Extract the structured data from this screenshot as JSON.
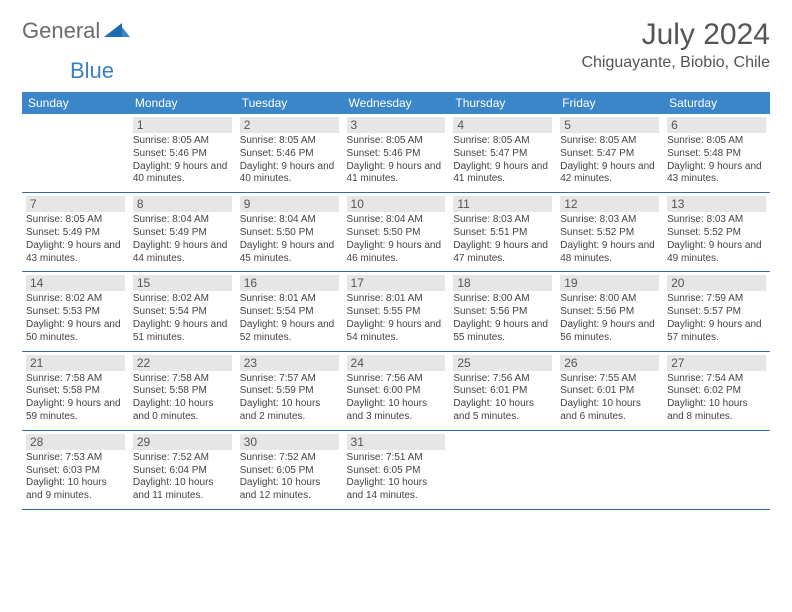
{
  "brand": {
    "general": "General",
    "blue": "Blue"
  },
  "title": "July 2024",
  "location": "Chiguayante, Biobio, Chile",
  "colors": {
    "header_bg": "#3a86c8",
    "header_text": "#ffffff",
    "row_border": "#2f6ea8",
    "daynum_bg": "#e6e6e6",
    "logo_blue": "#3a7fc4",
    "logo_gray": "#6b6b6b"
  },
  "weekdays": [
    "Sunday",
    "Monday",
    "Tuesday",
    "Wednesday",
    "Thursday",
    "Friday",
    "Saturday"
  ],
  "start_offset": 1,
  "days": [
    {
      "n": 1,
      "sr": "8:05 AM",
      "ss": "5:46 PM",
      "dl": "9 hours and 40 minutes."
    },
    {
      "n": 2,
      "sr": "8:05 AM",
      "ss": "5:46 PM",
      "dl": "9 hours and 40 minutes."
    },
    {
      "n": 3,
      "sr": "8:05 AM",
      "ss": "5:46 PM",
      "dl": "9 hours and 41 minutes."
    },
    {
      "n": 4,
      "sr": "8:05 AM",
      "ss": "5:47 PM",
      "dl": "9 hours and 41 minutes."
    },
    {
      "n": 5,
      "sr": "8:05 AM",
      "ss": "5:47 PM",
      "dl": "9 hours and 42 minutes."
    },
    {
      "n": 6,
      "sr": "8:05 AM",
      "ss": "5:48 PM",
      "dl": "9 hours and 43 minutes."
    },
    {
      "n": 7,
      "sr": "8:05 AM",
      "ss": "5:49 PM",
      "dl": "9 hours and 43 minutes."
    },
    {
      "n": 8,
      "sr": "8:04 AM",
      "ss": "5:49 PM",
      "dl": "9 hours and 44 minutes."
    },
    {
      "n": 9,
      "sr": "8:04 AM",
      "ss": "5:50 PM",
      "dl": "9 hours and 45 minutes."
    },
    {
      "n": 10,
      "sr": "8:04 AM",
      "ss": "5:50 PM",
      "dl": "9 hours and 46 minutes."
    },
    {
      "n": 11,
      "sr": "8:03 AM",
      "ss": "5:51 PM",
      "dl": "9 hours and 47 minutes."
    },
    {
      "n": 12,
      "sr": "8:03 AM",
      "ss": "5:52 PM",
      "dl": "9 hours and 48 minutes."
    },
    {
      "n": 13,
      "sr": "8:03 AM",
      "ss": "5:52 PM",
      "dl": "9 hours and 49 minutes."
    },
    {
      "n": 14,
      "sr": "8:02 AM",
      "ss": "5:53 PM",
      "dl": "9 hours and 50 minutes."
    },
    {
      "n": 15,
      "sr": "8:02 AM",
      "ss": "5:54 PM",
      "dl": "9 hours and 51 minutes."
    },
    {
      "n": 16,
      "sr": "8:01 AM",
      "ss": "5:54 PM",
      "dl": "9 hours and 52 minutes."
    },
    {
      "n": 17,
      "sr": "8:01 AM",
      "ss": "5:55 PM",
      "dl": "9 hours and 54 minutes."
    },
    {
      "n": 18,
      "sr": "8:00 AM",
      "ss": "5:56 PM",
      "dl": "9 hours and 55 minutes."
    },
    {
      "n": 19,
      "sr": "8:00 AM",
      "ss": "5:56 PM",
      "dl": "9 hours and 56 minutes."
    },
    {
      "n": 20,
      "sr": "7:59 AM",
      "ss": "5:57 PM",
      "dl": "9 hours and 57 minutes."
    },
    {
      "n": 21,
      "sr": "7:58 AM",
      "ss": "5:58 PM",
      "dl": "9 hours and 59 minutes."
    },
    {
      "n": 22,
      "sr": "7:58 AM",
      "ss": "5:58 PM",
      "dl": "10 hours and 0 minutes."
    },
    {
      "n": 23,
      "sr": "7:57 AM",
      "ss": "5:59 PM",
      "dl": "10 hours and 2 minutes."
    },
    {
      "n": 24,
      "sr": "7:56 AM",
      "ss": "6:00 PM",
      "dl": "10 hours and 3 minutes."
    },
    {
      "n": 25,
      "sr": "7:56 AM",
      "ss": "6:01 PM",
      "dl": "10 hours and 5 minutes."
    },
    {
      "n": 26,
      "sr": "7:55 AM",
      "ss": "6:01 PM",
      "dl": "10 hours and 6 minutes."
    },
    {
      "n": 27,
      "sr": "7:54 AM",
      "ss": "6:02 PM",
      "dl": "10 hours and 8 minutes."
    },
    {
      "n": 28,
      "sr": "7:53 AM",
      "ss": "6:03 PM",
      "dl": "10 hours and 9 minutes."
    },
    {
      "n": 29,
      "sr": "7:52 AM",
      "ss": "6:04 PM",
      "dl": "10 hours and 11 minutes."
    },
    {
      "n": 30,
      "sr": "7:52 AM",
      "ss": "6:05 PM",
      "dl": "10 hours and 12 minutes."
    },
    {
      "n": 31,
      "sr": "7:51 AM",
      "ss": "6:05 PM",
      "dl": "10 hours and 14 minutes."
    }
  ],
  "labels": {
    "sunrise": "Sunrise:",
    "sunset": "Sunset:",
    "daylight": "Daylight:"
  }
}
